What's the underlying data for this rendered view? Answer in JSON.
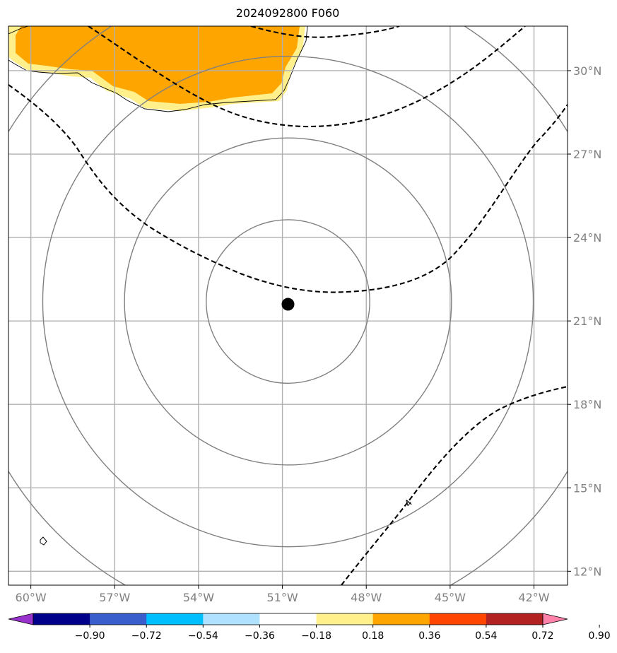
{
  "title": "2024092800 F060",
  "map": {
    "lon_range": [
      -60.8,
      -40.8
    ],
    "lat_range": [
      11.5,
      31.6
    ],
    "lon_ticks": [
      -60,
      -57,
      -54,
      -51,
      -48,
      -45,
      -42
    ],
    "lon_tick_labels": [
      "60°W",
      "57°W",
      "54°W",
      "51°W",
      "48°W",
      "45°W",
      "42°W"
    ],
    "lat_ticks": [
      12,
      15,
      18,
      21,
      24,
      27,
      30
    ],
    "lat_tick_labels": [
      "12°N",
      "15°N",
      "18°N",
      "21°N",
      "24°N",
      "27°N",
      "30°N"
    ],
    "grid": true,
    "center_marker": {
      "lon": -50.8,
      "lat": 21.6,
      "color": "#000000"
    },
    "range_rings": {
      "center": {
        "lon": -50.8,
        "lat": 21.7
      },
      "count": 4,
      "color": "#808080"
    },
    "contour_style": "dashed",
    "contour_color": "#000000",
    "shaded_field": {
      "description_colors": [
        "#fff08c",
        "#ffa500"
      ],
      "levels_shown": [
        "0.18-0.36",
        "0.36-0.54"
      ]
    },
    "contour_label": "4"
  },
  "colorbar": {
    "colors": [
      "#9932cc",
      "#00008b",
      "#3a5fcd",
      "#00bfff",
      "#b0e2ff",
      "#ffffff",
      "#fff08c",
      "#ffa500",
      "#ff4500",
      "#b22222",
      "#ff82ab"
    ],
    "extend": "both",
    "tick_labels": [
      "−0.90",
      "−0.72",
      "−0.54",
      "−0.36",
      "−0.18",
      "0.18",
      "0.36",
      "0.54",
      "0.72",
      "0.90"
    ]
  }
}
